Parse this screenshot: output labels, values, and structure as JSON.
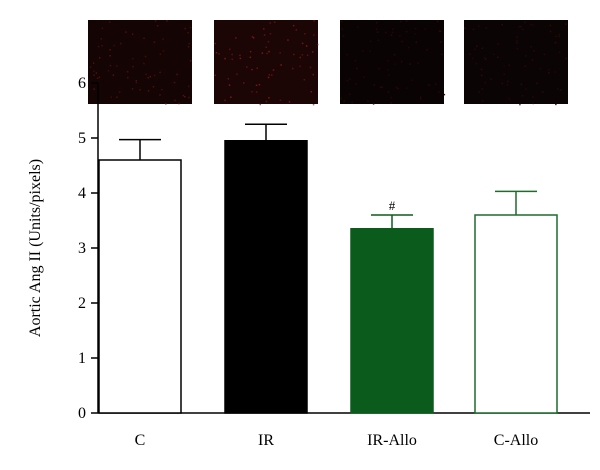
{
  "chart_data": {
    "type": "bar",
    "title": "",
    "xlabel": "",
    "ylabel": "Aortic Ang II (Units/pixels)",
    "ylim": [
      0,
      6
    ],
    "yticks": [
      0,
      1,
      2,
      3,
      4,
      5,
      6
    ],
    "grid": false,
    "categories": [
      "C",
      "IR",
      "IR-Allo",
      "C-Allo"
    ],
    "values": [
      4.6,
      4.95,
      3.35,
      3.6
    ],
    "errors": [
      0.37,
      0.3,
      0.25,
      0.43
    ],
    "fill_colors": [
      "#ffffff",
      "#000000",
      "#0b5c1c",
      "#ffffff"
    ],
    "edge_colors": [
      "#000000",
      "#000000",
      "#0b5c1c",
      "#1f6b2b"
    ],
    "annotations": [
      {
        "category": "IR-Allo",
        "text": "#"
      }
    ],
    "micrograph_panels": [
      {
        "category": "C",
        "tint": "#140404",
        "speckle": "#5a1010"
      },
      {
        "category": "IR",
        "tint": "#1c0505",
        "speckle": "#7a1a1a"
      },
      {
        "category": "IR-Allo",
        "tint": "#0a0303",
        "speckle": "#2a0a0a"
      },
      {
        "category": "C-Allo",
        "tint": "#0b0404",
        "speckle": "#2e0b0b"
      }
    ]
  }
}
